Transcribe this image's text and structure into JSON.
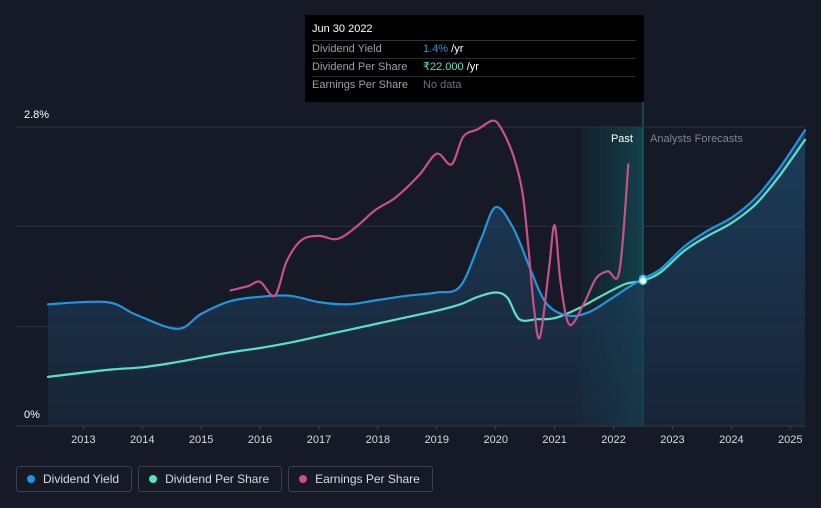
{
  "tooltip": {
    "date": "Jun 30 2022",
    "rows": [
      {
        "label": "Dividend Yield",
        "value": "1.4%",
        "unit": " /yr"
      },
      {
        "label": "Dividend Per Share",
        "value": "₹22.000",
        "unit": " /yr"
      },
      {
        "label": "Earnings Per Share",
        "value": "No data",
        "unit": ""
      }
    ]
  },
  "legend": [
    {
      "label": "Dividend Yield",
      "color": "#2394df"
    },
    {
      "label": "Dividend Per Share",
      "color": "#58e1c4"
    },
    {
      "label": "Earnings Per Share",
      "color": "#c8508c"
    }
  ],
  "chart_data": {
    "type": "line",
    "y_ticks": [
      "2.8%",
      "0%"
    ],
    "x_ticks": [
      "2013",
      "2014",
      "2015",
      "2016",
      "2017",
      "2018",
      "2019",
      "2020",
      "2021",
      "2022",
      "2023",
      "2024",
      "2025"
    ],
    "regions": {
      "past": "Past",
      "forecast": "Analysts Forecasts"
    },
    "xlim": [
      2012.4,
      2025.25
    ],
    "ylim": [
      0,
      2.8
    ],
    "past_band": [
      2021.45,
      2022.5
    ],
    "grid": true,
    "series": [
      {
        "name": "Dividend Yield",
        "color": "#2394df",
        "x": [
          2012.4,
          2013.4,
          2013.9,
          2014.6,
          2015.0,
          2015.5,
          2016.0,
          2016.5,
          2017.0,
          2017.5,
          2018.0,
          2018.5,
          2019.0,
          2019.4,
          2019.75,
          2020.0,
          2020.3,
          2020.6,
          2020.8,
          2021.0,
          2021.3,
          2021.6,
          2021.9,
          2022.2,
          2022.5,
          2022.8,
          2023.2,
          2023.6,
          2024.0,
          2024.4,
          2024.8,
          2025.25
        ],
        "y": [
          1.14,
          1.16,
          1.04,
          0.91,
          1.05,
          1.17,
          1.21,
          1.22,
          1.16,
          1.14,
          1.18,
          1.22,
          1.25,
          1.31,
          1.75,
          2.05,
          1.85,
          1.45,
          1.2,
          1.08,
          1.03,
          1.07,
          1.17,
          1.28,
          1.38,
          1.47,
          1.68,
          1.83,
          1.95,
          2.13,
          2.4,
          2.77
        ]
      },
      {
        "name": "Dividend Per Share",
        "color": "#58e1c4",
        "x": [
          2012.4,
          2013.0,
          2013.5,
          2014.0,
          2014.5,
          2015.0,
          2015.5,
          2016.0,
          2016.5,
          2017.0,
          2017.5,
          2018.0,
          2018.5,
          2019.0,
          2019.4,
          2019.7,
          2020.0,
          2020.2,
          2020.4,
          2020.7,
          2021.0,
          2021.4,
          2021.8,
          2022.2,
          2022.5,
          2022.8,
          2023.2,
          2023.6,
          2024.0,
          2024.4,
          2024.8,
          2025.25
        ],
        "y": [
          0.46,
          0.5,
          0.53,
          0.55,
          0.59,
          0.64,
          0.69,
          0.73,
          0.78,
          0.84,
          0.9,
          0.96,
          1.02,
          1.08,
          1.14,
          1.21,
          1.25,
          1.2,
          1.0,
          1.0,
          1.01,
          1.1,
          1.22,
          1.33,
          1.36,
          1.44,
          1.64,
          1.78,
          1.9,
          2.07,
          2.33,
          2.68
        ]
      },
      {
        "name": "Earnings Per Share",
        "color": "#c8508c",
        "x": [
          2015.5,
          2015.8,
          2016.0,
          2016.25,
          2016.45,
          2016.7,
          2017.0,
          2017.3,
          2017.6,
          2017.95,
          2018.3,
          2018.7,
          2019.0,
          2019.25,
          2019.45,
          2019.7,
          2019.95,
          2020.1,
          2020.3,
          2020.45,
          2020.55,
          2020.65,
          2020.75,
          2020.9,
          2021.0,
          2021.1,
          2021.25,
          2021.5,
          2021.7,
          2021.9,
          2022.1,
          2022.25
        ],
        "y": [
          1.27,
          1.31,
          1.35,
          1.22,
          1.54,
          1.74,
          1.78,
          1.75,
          1.85,
          2.02,
          2.14,
          2.35,
          2.55,
          2.45,
          2.71,
          2.78,
          2.86,
          2.78,
          2.53,
          2.2,
          1.7,
          1.1,
          0.83,
          1.45,
          1.88,
          1.35,
          0.95,
          1.15,
          1.38,
          1.45,
          1.45,
          2.45
        ]
      }
    ],
    "markers_at_x": 2022.5
  }
}
